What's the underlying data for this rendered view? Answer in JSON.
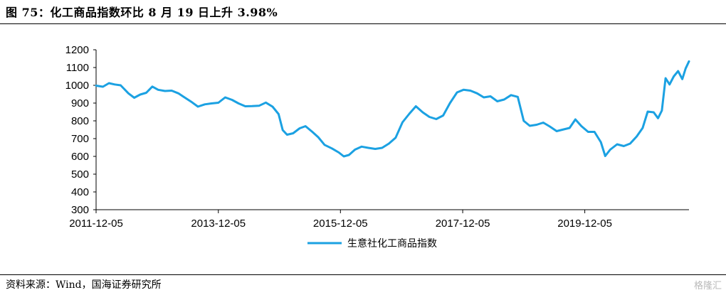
{
  "header": {
    "title": "图 75：化工商品指数环比 8 月 19 日上升 3.98%"
  },
  "footer": {
    "source": "资料来源：Wind，国海证券研究所",
    "watermark": "格隆汇"
  },
  "colors": {
    "series": "#1ba1e2",
    "axis": "#000000"
  },
  "chart_data": {
    "type": "line",
    "title": "",
    "xlabel": "",
    "ylabel": "",
    "ylim": [
      300,
      1200
    ],
    "yticks": [
      "300",
      "400",
      "500",
      "600",
      "700",
      "800",
      "900",
      "1000",
      "1100",
      "1200"
    ],
    "xtick_labels": [
      "2011-12-05",
      "2013-12-05",
      "2015-12-05",
      "2017-12-05",
      "2019-12-05"
    ],
    "x_range": [
      "2011-12-05",
      "2021-08-19"
    ],
    "grid": false,
    "legend_position": "bottom-center",
    "series": [
      {
        "name": "生意社化工商品指数",
        "points": [
          [
            "2011-12-05",
            998
          ],
          [
            "2012-01-15",
            992
          ],
          [
            "2012-02-20",
            1012
          ],
          [
            "2012-03-25",
            1005
          ],
          [
            "2012-04-30",
            1000
          ],
          [
            "2012-06-15",
            955
          ],
          [
            "2012-07-20",
            930
          ],
          [
            "2012-08-25",
            948
          ],
          [
            "2012-09-30",
            958
          ],
          [
            "2012-11-05",
            993
          ],
          [
            "2012-12-10",
            975
          ],
          [
            "2013-01-20",
            968
          ],
          [
            "2013-03-01",
            970
          ],
          [
            "2013-04-10",
            955
          ],
          [
            "2013-05-20",
            930
          ],
          [
            "2013-06-30",
            905
          ],
          [
            "2013-08-05",
            880
          ],
          [
            "2013-09-15",
            893
          ],
          [
            "2013-10-25",
            898
          ],
          [
            "2013-12-05",
            902
          ],
          [
            "2014-01-15",
            932
          ],
          [
            "2014-02-25",
            918
          ],
          [
            "2014-04-05",
            898
          ],
          [
            "2014-05-15",
            882
          ],
          [
            "2014-06-25",
            883
          ],
          [
            "2014-08-05",
            885
          ],
          [
            "2014-09-15",
            903
          ],
          [
            "2014-10-25",
            880
          ],
          [
            "2014-11-30",
            838
          ],
          [
            "2014-12-25",
            748
          ],
          [
            "2015-01-20",
            722
          ],
          [
            "2015-02-25",
            730
          ],
          [
            "2015-04-05",
            758
          ],
          [
            "2015-05-10",
            770
          ],
          [
            "2015-06-20",
            738
          ],
          [
            "2015-07-25",
            708
          ],
          [
            "2015-09-01",
            665
          ],
          [
            "2015-10-15",
            645
          ],
          [
            "2015-11-25",
            622
          ],
          [
            "2015-12-25",
            600
          ],
          [
            "2016-01-25",
            608
          ],
          [
            "2016-03-01",
            638
          ],
          [
            "2016-04-10",
            655
          ],
          [
            "2016-05-20",
            648
          ],
          [
            "2016-06-30",
            642
          ],
          [
            "2016-08-10",
            648
          ],
          [
            "2016-09-20",
            672
          ],
          [
            "2016-10-30",
            705
          ],
          [
            "2016-12-10",
            792
          ],
          [
            "2017-01-20",
            840
          ],
          [
            "2017-02-28",
            882
          ],
          [
            "2017-04-10",
            848
          ],
          [
            "2017-05-20",
            822
          ],
          [
            "2017-06-30",
            810
          ],
          [
            "2017-08-10",
            830
          ],
          [
            "2017-09-20",
            900
          ],
          [
            "2017-11-01",
            960
          ],
          [
            "2017-12-10",
            975
          ],
          [
            "2018-01-20",
            970
          ],
          [
            "2018-03-01",
            955
          ],
          [
            "2018-04-10",
            932
          ],
          [
            "2018-05-20",
            938
          ],
          [
            "2018-06-30",
            910
          ],
          [
            "2018-08-10",
            920
          ],
          [
            "2018-09-20",
            945
          ],
          [
            "2018-10-30",
            935
          ],
          [
            "2018-12-05",
            800
          ],
          [
            "2019-01-10",
            772
          ],
          [
            "2019-02-20",
            778
          ],
          [
            "2019-04-01",
            790
          ],
          [
            "2019-05-10",
            768
          ],
          [
            "2019-06-20",
            742
          ],
          [
            "2019-08-01",
            752
          ],
          [
            "2019-09-05",
            760
          ],
          [
            "2019-10-10",
            808
          ],
          [
            "2019-11-15",
            770
          ],
          [
            "2019-12-25",
            738
          ],
          [
            "2020-02-01",
            738
          ],
          [
            "2020-03-10",
            680
          ],
          [
            "2020-04-05",
            602
          ],
          [
            "2020-05-05",
            638
          ],
          [
            "2020-06-15",
            668
          ],
          [
            "2020-07-25",
            658
          ],
          [
            "2020-09-01",
            672
          ],
          [
            "2020-10-10",
            712
          ],
          [
            "2020-11-15",
            760
          ],
          [
            "2020-12-15",
            852
          ],
          [
            "2021-01-20",
            848
          ],
          [
            "2021-02-15",
            815
          ],
          [
            "2021-03-10",
            858
          ],
          [
            "2021-04-01",
            1040
          ],
          [
            "2021-04-25",
            1005
          ],
          [
            "2021-05-20",
            1050
          ],
          [
            "2021-06-15",
            1080
          ],
          [
            "2021-07-10",
            1035
          ],
          [
            "2021-07-30",
            1095
          ],
          [
            "2021-08-19",
            1135
          ]
        ]
      }
    ]
  }
}
